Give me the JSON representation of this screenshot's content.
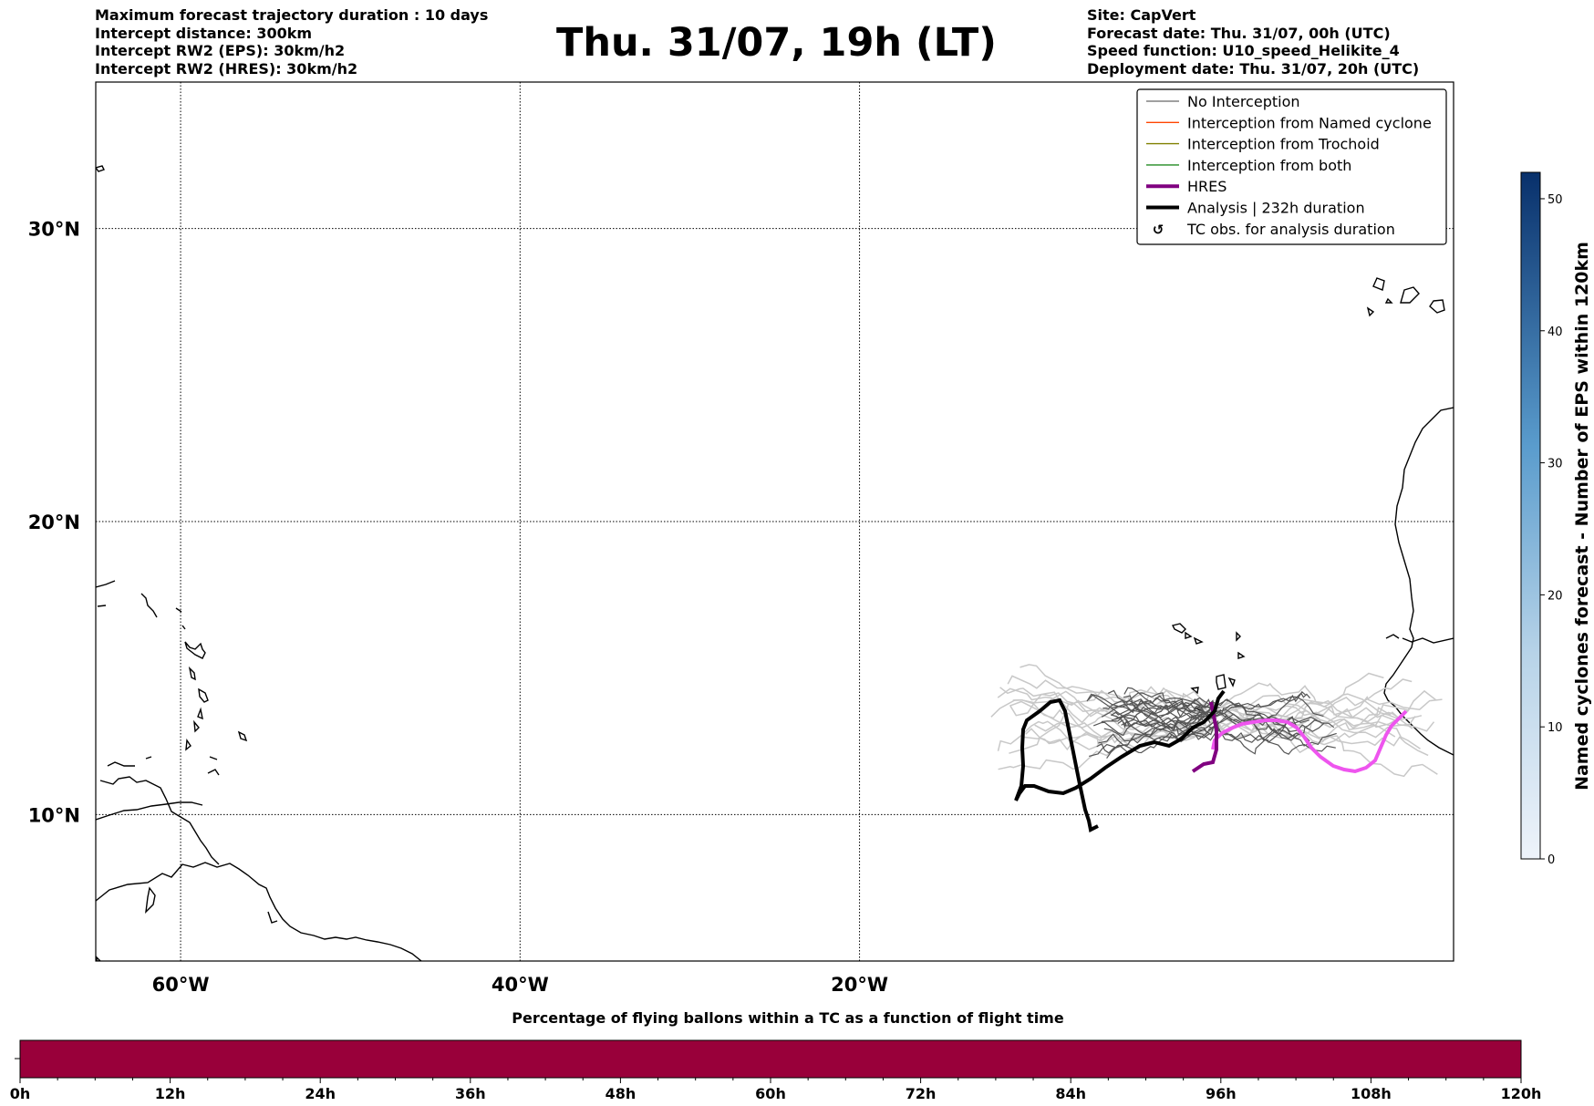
{
  "header": {
    "left_lines": [
      "Maximum forecast trajectory duration : 10 days",
      "Intercept distance: 300km",
      "Intercept RW2 (EPS):  30km/h2",
      "Intercept RW2 (HRES): 30km/h2"
    ],
    "title": "Thu. 31/07, 19h (LT)",
    "right_lines": [
      "Site: CapVert",
      "Forecast date: Thu. 31/07, 00h (UTC)",
      "Speed function: U10_speed_Helikite_4",
      "Deployment date: Thu. 31/07, 20h (UTC)"
    ]
  },
  "map": {
    "lon_range": [
      -65,
      15
    ],
    "lat_range": [
      5,
      35
    ],
    "lon_ticks": [
      {
        "value": -60,
        "label": "60°W"
      },
      {
        "value": -40,
        "label": "40°W"
      },
      {
        "value": -20,
        "label": "20°W"
      }
    ],
    "lat_ticks": [
      {
        "value": 30,
        "label": "30°N"
      },
      {
        "value": 20,
        "label": "20°N"
      },
      {
        "value": 10,
        "label": "10°N"
      }
    ],
    "gridlines": "dotted",
    "legend": {
      "placement": "top-right",
      "entries": [
        {
          "label": "No Interception",
          "color": "#808080",
          "style": "thin"
        },
        {
          "label": "Interception from Named cyclone",
          "color": "#ff4500",
          "style": "thin"
        },
        {
          "label": "Interception from Trochoid",
          "color": "#808000",
          "style": "thin"
        },
        {
          "label": "Interception from both",
          "color": "#228b22",
          "style": "thin"
        },
        {
          "label": "HRES",
          "color": "#800080",
          "style": "thick"
        },
        {
          "label": "Analysis | 232h duration",
          "color": "#000000",
          "style": "thick"
        },
        {
          "label": "TC obs. for analysis duration",
          "color": "#000000",
          "style": "symbol"
        }
      ]
    },
    "colors": {
      "eps_dark": "#555555",
      "eps_light": "#c8c8c8",
      "hres": "#800080",
      "hres_forecast": "#ee55ee",
      "analysis": "#000000"
    }
  },
  "colorbar": {
    "label": "Named cyclones forecast - Number of EPS within 120km",
    "ticks": [
      "0",
      "10",
      "20",
      "30",
      "40",
      "50"
    ],
    "max": 52,
    "color_low": "#e8f0f8",
    "color_high": "#08306b"
  },
  "bottom_bar": {
    "title": "Percentage of flying ballons within a TC as a function of flight time",
    "ticks": [
      "0h",
      "12h",
      "24h",
      "36h",
      "48h",
      "60h",
      "72h",
      "84h",
      "96h",
      "108h",
      "120h"
    ],
    "fill_color": "#99003a"
  }
}
